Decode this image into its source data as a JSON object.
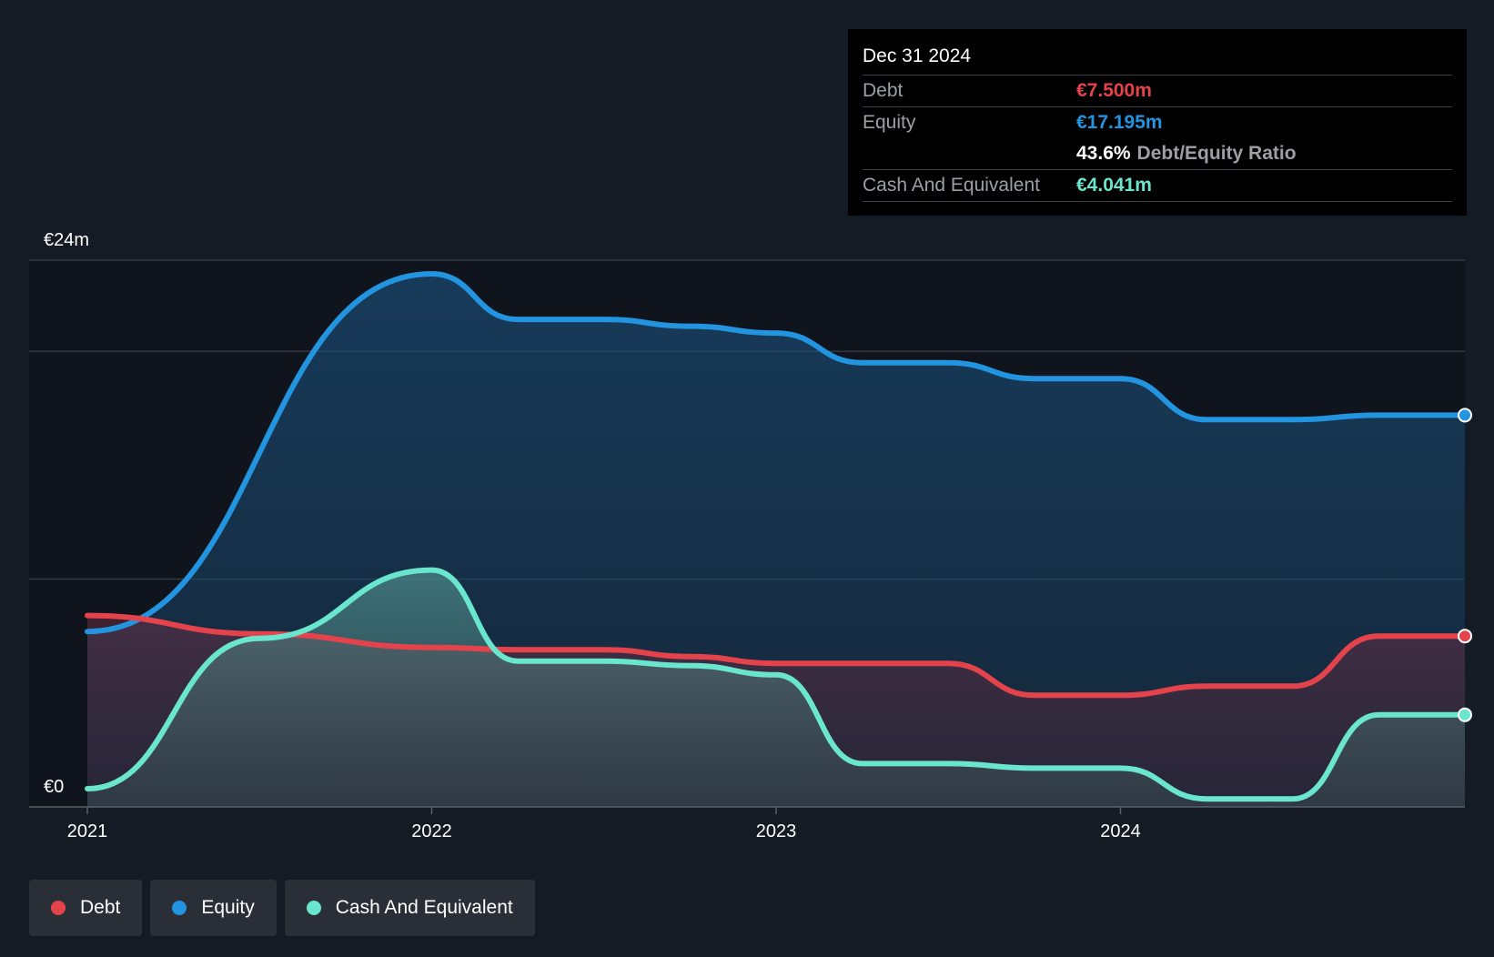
{
  "tooltip": {
    "date": "Dec 31 2024",
    "debt_label": "Debt",
    "debt_value": "€7.500m",
    "equity_label": "Equity",
    "equity_value": "€17.195m",
    "ratio_value": "43.6%",
    "ratio_label": "Debt/Equity Ratio",
    "cash_label": "Cash And Equivalent",
    "cash_value": "€4.041m"
  },
  "legend": {
    "debt": "Debt",
    "equity": "Equity",
    "cash": "Cash And Equivalent"
  },
  "colors": {
    "debt": "#e5434b",
    "equity": "#2394df",
    "cash": "#6ae6cf",
    "background": "#151b24"
  },
  "chart_data": {
    "type": "area",
    "ylim": [
      0,
      24
    ],
    "yticks": [
      {
        "value": 0,
        "label": "€0"
      },
      {
        "value": 24,
        "label": "€24m"
      }
    ],
    "gridlines": [
      10,
      20,
      24
    ],
    "xticks": [
      {
        "value": 2021.0,
        "label": "2021"
      },
      {
        "value": 2022.0,
        "label": "2022"
      },
      {
        "value": 2023.0,
        "label": "2023"
      },
      {
        "value": 2024.0,
        "label": "2024"
      }
    ],
    "xlim": [
      2020.83,
      2025.0
    ],
    "series": [
      {
        "name": "Equity",
        "key": "equity",
        "points": [
          [
            2021.0,
            7.7
          ],
          [
            2022.0,
            23.4
          ],
          [
            2022.25,
            21.4
          ],
          [
            2022.5,
            21.4
          ],
          [
            2022.75,
            21.1
          ],
          [
            2023.0,
            20.8
          ],
          [
            2023.25,
            19.5
          ],
          [
            2023.5,
            19.5
          ],
          [
            2023.75,
            18.8
          ],
          [
            2024.0,
            18.8
          ],
          [
            2024.25,
            17.0
          ],
          [
            2024.5,
            17.0
          ],
          [
            2024.75,
            17.195
          ],
          [
            2025.0,
            17.195
          ]
        ]
      },
      {
        "name": "Debt",
        "key": "debt",
        "points": [
          [
            2021.0,
            8.4
          ],
          [
            2021.5,
            7.6
          ],
          [
            2022.0,
            7.0
          ],
          [
            2022.25,
            6.9
          ],
          [
            2022.5,
            6.9
          ],
          [
            2022.75,
            6.6
          ],
          [
            2023.0,
            6.3
          ],
          [
            2023.25,
            6.3
          ],
          [
            2023.5,
            6.3
          ],
          [
            2023.75,
            4.9
          ],
          [
            2024.0,
            4.9
          ],
          [
            2024.25,
            5.3
          ],
          [
            2024.5,
            5.3
          ],
          [
            2024.75,
            7.5
          ],
          [
            2025.0,
            7.5
          ]
        ]
      },
      {
        "name": "Cash And Equivalent",
        "key": "cash",
        "points": [
          [
            2021.0,
            0.8
          ],
          [
            2021.5,
            7.4
          ],
          [
            2022.0,
            10.4
          ],
          [
            2022.25,
            6.4
          ],
          [
            2022.5,
            6.4
          ],
          [
            2022.75,
            6.2
          ],
          [
            2023.0,
            5.8
          ],
          [
            2023.25,
            1.9
          ],
          [
            2023.5,
            1.9
          ],
          [
            2023.75,
            1.7
          ],
          [
            2024.0,
            1.7
          ],
          [
            2024.25,
            0.35
          ],
          [
            2024.5,
            0.35
          ],
          [
            2024.75,
            4.041
          ],
          [
            2025.0,
            4.041
          ]
        ]
      }
    ]
  }
}
